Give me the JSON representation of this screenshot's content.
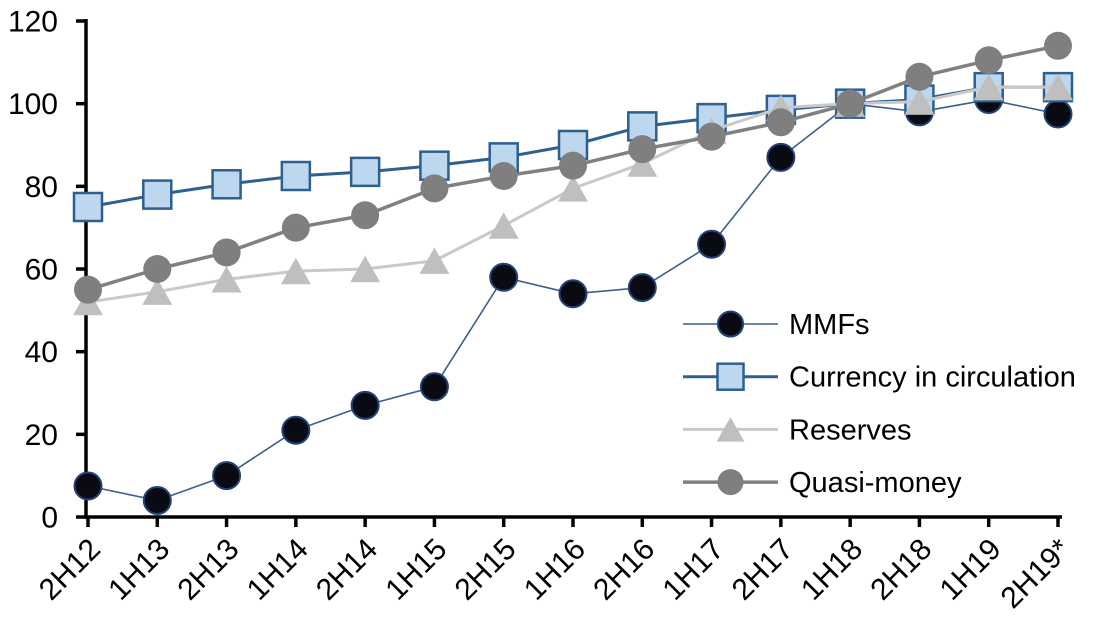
{
  "chart_data": {
    "type": "line",
    "title": "",
    "xlabel": "",
    "ylabel": "",
    "categories": [
      "2H12",
      "1H13",
      "2H13",
      "1H14",
      "2H14",
      "1H15",
      "2H15",
      "1H16",
      "2H16",
      "1H17",
      "2H17",
      "1H18",
      "2H18",
      "1H19",
      "2H19*"
    ],
    "series": [
      {
        "name": "MMFs",
        "marker": "circle",
        "values": [
          7.5,
          4,
          10,
          21,
          27,
          31.5,
          58,
          54,
          55.5,
          66,
          87,
          100,
          98,
          101,
          97.5
        ],
        "line_color": "#3A5F8F",
        "line_width": 1.6,
        "marker_fill": "#0A0A12",
        "marker_stroke": "#24427A",
        "marker_stroke_width": 2,
        "marker_size": 27
      },
      {
        "name": "Currency in circulation",
        "marker": "square",
        "values": [
          75,
          78,
          80.5,
          82.5,
          83.5,
          85,
          87,
          90,
          94.5,
          96.5,
          98.5,
          100,
          101,
          104,
          104
        ],
        "line_color": "#2E5F8F",
        "line_width": 3,
        "marker_fill": "#BDD7EE",
        "marker_stroke": "#2E5F8F",
        "marker_stroke_width": 2.5,
        "marker_size": 28
      },
      {
        "name": "Reserves",
        "marker": "triangle",
        "values": [
          52,
          54.5,
          57.5,
          59.5,
          60,
          62,
          70.5,
          79.5,
          85.5,
          93.5,
          99,
          100,
          100.5,
          104,
          104
        ],
        "line_color": "#C9C9C9",
        "line_width": 3,
        "marker_fill": "#BFBFBF",
        "marker_stroke": "#BFBFBF",
        "marker_stroke_width": 0,
        "marker_size": 30
      },
      {
        "name": "Quasi-money",
        "marker": "circle",
        "values": [
          55,
          60,
          64,
          70,
          73,
          79.5,
          82.5,
          85,
          89,
          92,
          95.5,
          100,
          106.5,
          110.5,
          114
        ],
        "line_color": "#808080",
        "line_width": 3.5,
        "marker_fill": "#7F7F7F",
        "marker_stroke": "#7F7F7F",
        "marker_stroke_width": 0,
        "marker_size": 28
      }
    ],
    "y_axis": {
      "min": 0,
      "max": 120,
      "step": 20,
      "tick_labels": [
        "0",
        "20",
        "40",
        "60",
        "80",
        "100",
        "120"
      ]
    },
    "x_axis": {
      "tick_label_rotation_deg": -45
    },
    "grid": "off",
    "axis_color": "#000000",
    "legend": {
      "position": "inside-right",
      "entries": [
        "MMFs",
        "Currency in circulation",
        "Reserves",
        "Quasi-money"
      ]
    }
  }
}
